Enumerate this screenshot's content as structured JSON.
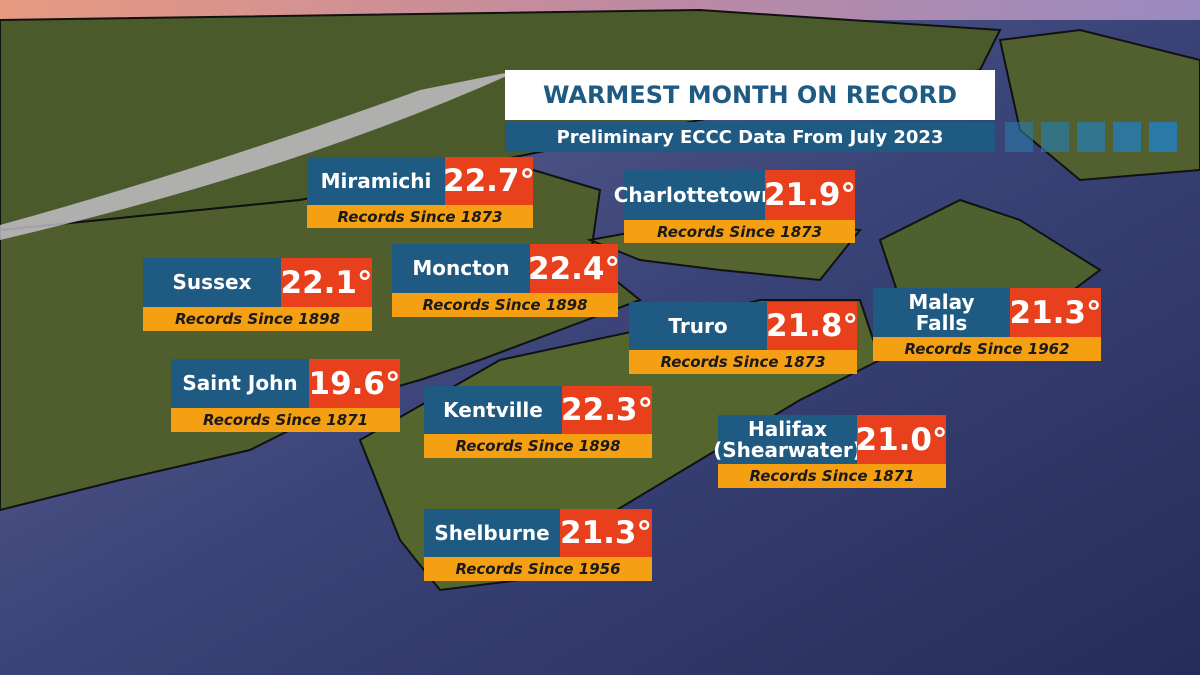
{
  "header": {
    "title": "WARMEST MONTH ON RECORD",
    "subtitle": "Preliminary ECCC Data From July 2023"
  },
  "stations": [
    {
      "name_lines": [
        "Miramichi"
      ],
      "temp": "22.7°",
      "records": "Records Since 1873"
    },
    {
      "name_lines": [
        "Charlottetown"
      ],
      "temp": "21.9°",
      "records": "Records Since 1873"
    },
    {
      "name_lines": [
        "Sussex"
      ],
      "temp": "22.1°",
      "records": "Records Since 1898"
    },
    {
      "name_lines": [
        "Moncton"
      ],
      "temp": "22.4°",
      "records": "Records Since 1898"
    },
    {
      "name_lines": [
        "Truro"
      ],
      "temp": "21.8°",
      "records": "Records Since 1873"
    },
    {
      "name_lines": [
        "Malay",
        "Falls"
      ],
      "temp": "21.3°",
      "records": "Records Since 1962"
    },
    {
      "name_lines": [
        "Saint John"
      ],
      "temp": "19.6°",
      "records": "Records Since 1871"
    },
    {
      "name_lines": [
        "Kentville"
      ],
      "temp": "22.3°",
      "records": "Records Since 1898"
    },
    {
      "name_lines": [
        "Halifax",
        "(Shearwater)"
      ],
      "temp": "21.0°",
      "records": "Records Since 1871"
    },
    {
      "name_lines": [
        "Shelburne"
      ],
      "temp": "21.3°",
      "records": "Records Since 1956"
    }
  ]
}
